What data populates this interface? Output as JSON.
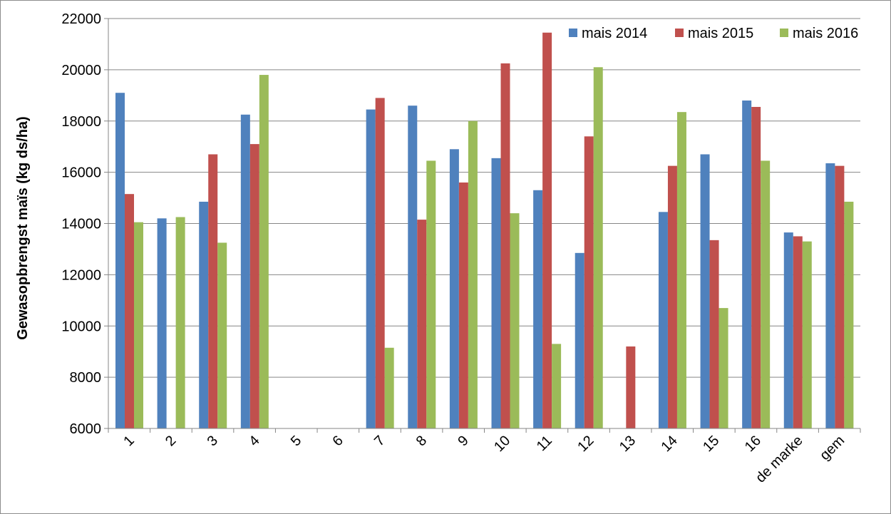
{
  "chart_data": {
    "type": "bar",
    "title": "",
    "xlabel": "",
    "ylabel": "Gewasopbrengst maïs (kg ds/ha)",
    "ylim": [
      6000,
      22000
    ],
    "yticks": [
      6000,
      8000,
      10000,
      12000,
      14000,
      16000,
      18000,
      20000,
      22000
    ],
    "grid": true,
    "legend_position": "top-right",
    "categories": [
      "1",
      "2",
      "3",
      "4",
      "5",
      "6",
      "7",
      "8",
      "9",
      "10",
      "11",
      "12",
      "13",
      "14",
      "15",
      "16",
      "de marke",
      "gem"
    ],
    "series": [
      {
        "name": "mais 2014",
        "color": "#4f81bd",
        "values": [
          19100,
          14200,
          14850,
          18250,
          null,
          null,
          18450,
          18600,
          16900,
          16550,
          15300,
          12850,
          null,
          14450,
          16700,
          18800,
          13650,
          16350
        ]
      },
      {
        "name": "mais 2015",
        "color": "#c0504d",
        "values": [
          15150,
          null,
          16700,
          17100,
          null,
          null,
          18900,
          14150,
          15600,
          20250,
          21450,
          17400,
          9200,
          16250,
          13350,
          18550,
          13500,
          16250
        ]
      },
      {
        "name": "mais 2016",
        "color": "#9bbb59",
        "values": [
          14050,
          14250,
          13250,
          19800,
          null,
          null,
          9150,
          16450,
          18000,
          14400,
          9300,
          20100,
          null,
          18350,
          10700,
          16450,
          13300,
          14850
        ]
      }
    ]
  }
}
